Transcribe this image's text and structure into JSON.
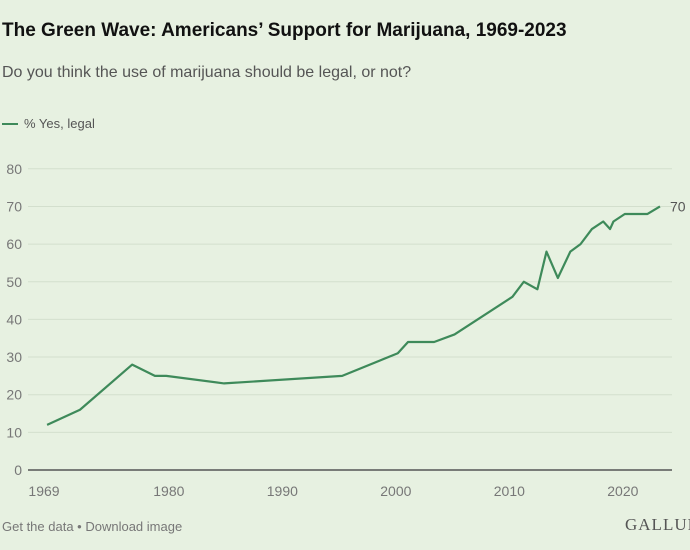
{
  "title": "The Green Wave: Americans’ Support for Marijuana, 1969-2023",
  "subtitle": "Do you think the use of marijuana should be legal, or not?",
  "footer": {
    "get_data": "Get the data",
    "separator": " • ",
    "download": "Download image"
  },
  "brand": "GALLUP",
  "colors": {
    "line": "#3e8a5a",
    "background": "#e7f1e1",
    "grid": "#d3dfcd"
  },
  "chart_data": {
    "type": "line",
    "title": "The Green Wave: Americans’ Support for Marijuana, 1969-2023",
    "xlabel": "",
    "ylabel": "",
    "xlim": [
      1969,
      2024.2
    ],
    "ylim": [
      0,
      80
    ],
    "x_ticks": [
      1969,
      1980,
      1990,
      2000,
      2010,
      2020
    ],
    "y_ticks": [
      0,
      10,
      20,
      30,
      40,
      50,
      60,
      70,
      80
    ],
    "grid": true,
    "legend_placement": "top-left",
    "end_label": "70",
    "series": [
      {
        "name": "% Yes, legal",
        "x": [
          1969.8,
          1972.7,
          1977.3,
          1979.3,
          1980.3,
          1985.4,
          1995.8,
          2000.7,
          2001.6,
          2003.9,
          2005.7,
          2010.8,
          2011.8,
          2013.0,
          2013.8,
          2014.8,
          2015.9,
          2016.8,
          2017.8,
          2018.8,
          2019.4,
          2019.7,
          2020.7,
          2022.7,
          2023.8
        ],
        "values": [
          12,
          16,
          28,
          25,
          25,
          23,
          25,
          31,
          34,
          34,
          36,
          46,
          50,
          48,
          58,
          51,
          58,
          60,
          64,
          66,
          64,
          66,
          68,
          68,
          70
        ]
      }
    ]
  }
}
